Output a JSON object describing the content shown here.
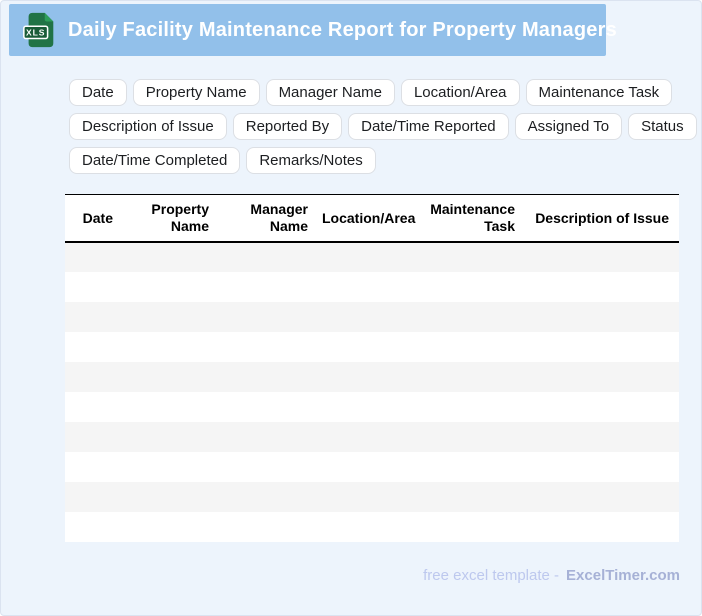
{
  "header": {
    "title": "Daily Facility Maintenance Report for Property Managers",
    "file_type": "XLS"
  },
  "field_chips": {
    "rows": [
      [
        "Date",
        "Property Name",
        "Manager Name",
        "Location/Area",
        "Maintenance Task"
      ],
      [
        "Description of Issue",
        "Reported By",
        "Date/Time Reported",
        "Assigned To",
        "Status"
      ],
      [
        "Date/Time Completed",
        "Remarks/Notes"
      ]
    ]
  },
  "table": {
    "columns": [
      "Date",
      "Property Name",
      "Manager Name",
      "Location/Area",
      "Maintenance Task",
      "Description of Issue"
    ],
    "empty_row_count": 10
  },
  "footer": {
    "tagline": "free excel template -",
    "brand": "ExcelTimer.com"
  },
  "colors": {
    "page_background": "#edf4fc",
    "header_bar": "#92c0ea",
    "icon_green_body": "#217346",
    "icon_green_fold": "#2e9e5b",
    "icon_green_label": "#1a5c38",
    "chip_border": "#dcdfe4",
    "row_stripe": "#f5f5f5",
    "table_border": "#000000",
    "footer_tagline": "#bdc8ee",
    "footer_brand": "#a6b1d6"
  }
}
